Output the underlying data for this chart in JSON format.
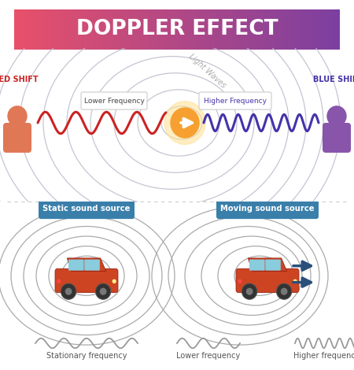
{
  "title": "DOPPLER EFFECT",
  "title_grad_left": "#E8506A",
  "title_grad_right": "#7B3FA0",
  "bg_color": "#ffffff",
  "red_shift_label": "RED SHIFT",
  "blue_shift_label": "BLUE SHIFT",
  "lower_freq_label": "Lower Frequency",
  "higher_freq_label": "Higher Frequency",
  "light_waves_label": "Light Waves",
  "static_label": "Static sound source",
  "moving_label": "Moving sound source",
  "stationary_freq_label": "Stationary frequency",
  "lower_freq_bottom_label": "Lower frequency",
  "higher_freq_bottom_label": "Higher frequency",
  "wave_circle_color_left": "#E08870",
  "wave_circle_color_right": "#7090C0",
  "wave_circle_color_mid": "#BBBBCC",
  "divider_color": "#CCCCCC",
  "box_color": "#3A7FAA",
  "arrow_color": "#2A4F7A",
  "source_color": "#F5A030",
  "source_glow": "#FFE090",
  "person_color_left": "#E07855",
  "person_color_right": "#8855AA",
  "red_wave_color": "#CC2222",
  "blue_wave_color": "#4433AA",
  "bottom_wave_color": "#999999",
  "car_body_color": "#CC4422",
  "car_dark_color": "#992211",
  "car_window_color": "#88CCDD",
  "car_wheel_color": "#333333",
  "car_wheel_edge": "#555555",
  "bottom_circle_color": "#AAAAAA"
}
